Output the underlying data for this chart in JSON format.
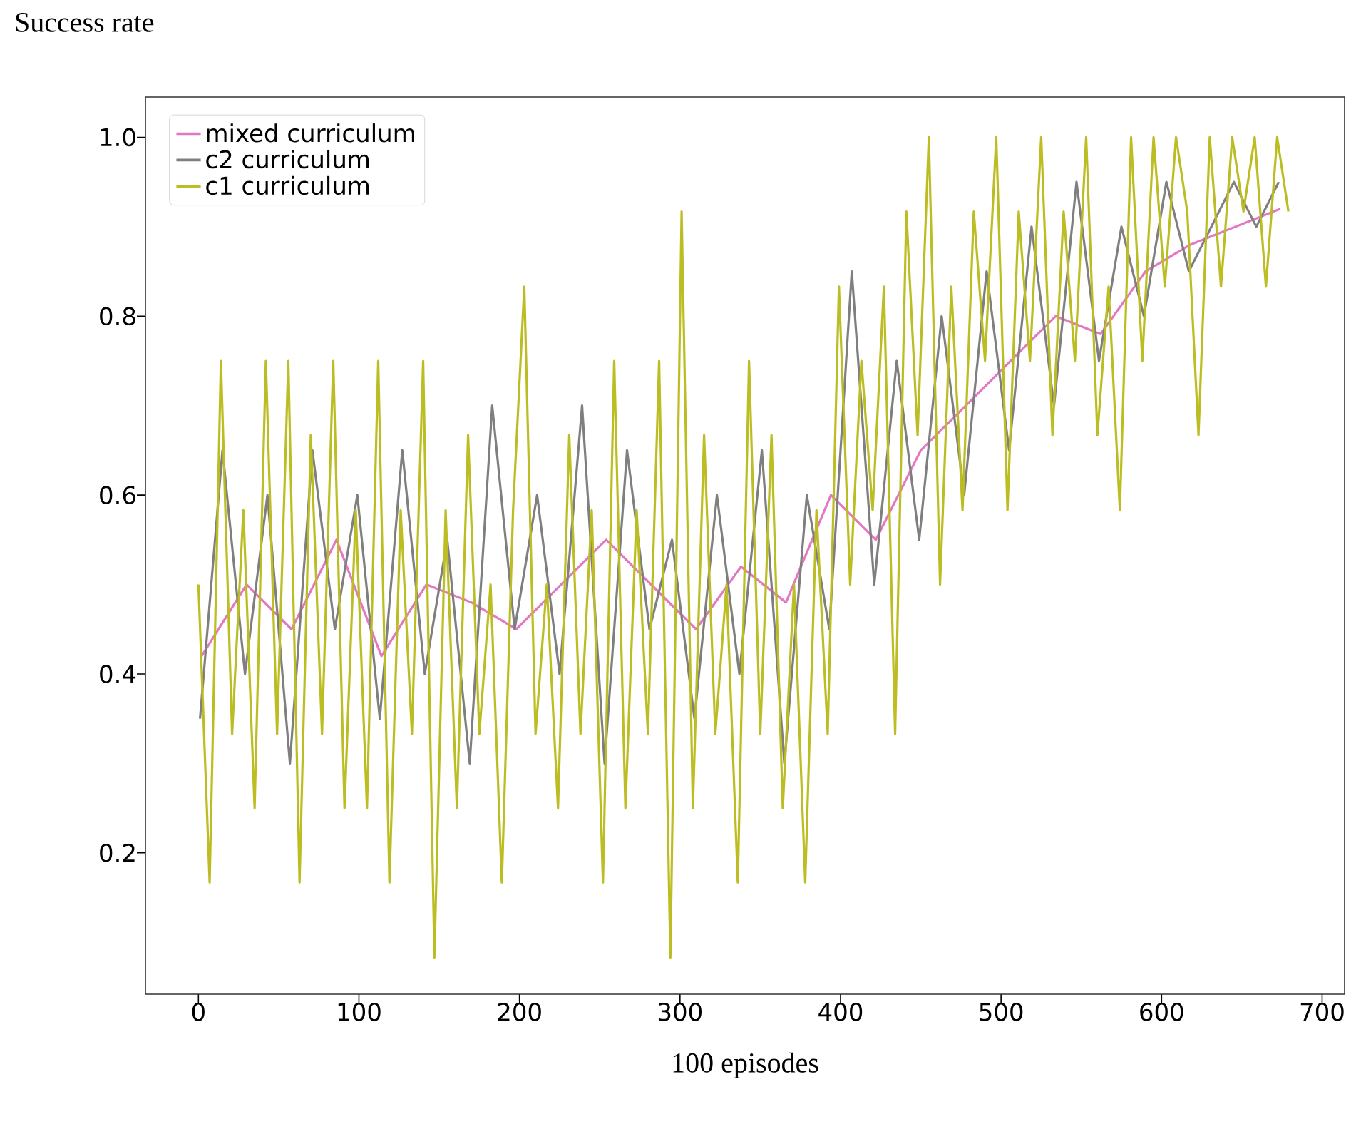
{
  "chart_data": {
    "type": "line",
    "ylabel": "Success rate",
    "xlabel": "100 episodes",
    "xlim": [
      -33,
      714
    ],
    "ylim": [
      0.042,
      1.045
    ],
    "xticks": [
      0,
      100,
      200,
      300,
      400,
      500,
      600,
      700
    ],
    "yticks": [
      0.2,
      0.4,
      0.6,
      0.8,
      {
        "value": 1.0,
        "label": "1.0"
      }
    ],
    "legend": "top left",
    "series": [
      {
        "name": "mixed curriculum",
        "color": "#e377c2",
        "x": [
          2,
          30,
          58,
          86,
          114,
          142,
          170,
          198,
          226,
          254,
          282,
          310,
          338,
          366,
          394,
          422,
          450,
          478,
          506,
          534,
          562,
          590,
          618,
          646,
          674
        ],
        "values": [
          0.42,
          0.5,
          0.45,
          0.55,
          0.42,
          0.5,
          0.48,
          0.45,
          0.5,
          0.55,
          0.5,
          0.45,
          0.52,
          0.48,
          0.6,
          0.55,
          0.65,
          0.7,
          0.75,
          0.8,
          0.78,
          0.85,
          0.88,
          0.9,
          0.92
        ]
      },
      {
        "name": "c2 curriculum",
        "color": "#7f7f7f",
        "x": [
          1,
          15,
          29,
          43,
          57,
          71,
          85,
          99,
          113,
          127,
          141,
          155,
          169,
          183,
          197,
          211,
          225,
          239,
          253,
          267,
          281,
          295,
          309,
          323,
          337,
          351,
          365,
          379,
          393,
          407,
          421,
          435,
          449,
          463,
          477,
          491,
          505,
          519,
          533,
          547,
          561,
          575,
          589,
          603,
          617,
          631,
          645,
          659,
          673
        ],
        "values": [
          0.35,
          0.65,
          0.4,
          0.6,
          0.3,
          0.65,
          0.45,
          0.6,
          0.35,
          0.65,
          0.4,
          0.55,
          0.3,
          0.7,
          0.45,
          0.6,
          0.4,
          0.7,
          0.3,
          0.65,
          0.45,
          0.55,
          0.35,
          0.6,
          0.4,
          0.65,
          0.3,
          0.6,
          0.45,
          0.85,
          0.5,
          0.75,
          0.55,
          0.8,
          0.6,
          0.85,
          0.65,
          0.9,
          0.7,
          0.95,
          0.75,
          0.9,
          0.8,
          0.95,
          0.85,
          0.9,
          0.95,
          0.9,
          0.95
        ]
      },
      {
        "name": "c1 curriculum",
        "color": "#bcbd22",
        "x": [
          0,
          7,
          14,
          21,
          28,
          35,
          42,
          49,
          56,
          63,
          70,
          77,
          84,
          91,
          98,
          105,
          112,
          119,
          126,
          133,
          140,
          147,
          154,
          161,
          168,
          175,
          182,
          189,
          196,
          203,
          210,
          217,
          224,
          231,
          238,
          245,
          252,
          259,
          266,
          273,
          280,
          287,
          294,
          301,
          308,
          315,
          322,
          329,
          336,
          343,
          350,
          357,
          364,
          371,
          378,
          385,
          392,
          399,
          406,
          413,
          420,
          427,
          434,
          441,
          448,
          455,
          462,
          469,
          476,
          483,
          490,
          497,
          504,
          511,
          518,
          525,
          532,
          539,
          546,
          553,
          560,
          567,
          574,
          581,
          588,
          595,
          602,
          609,
          616,
          623,
          630,
          637,
          644,
          651,
          658,
          665,
          672,
          679
        ],
        "values": [
          0.5,
          0.167,
          0.75,
          0.333,
          0.583,
          0.25,
          0.75,
          0.333,
          0.75,
          0.167,
          0.667,
          0.333,
          0.75,
          0.25,
          0.583,
          0.25,
          0.75,
          0.167,
          0.583,
          0.333,
          0.75,
          0.083,
          0.583,
          0.25,
          0.667,
          0.333,
          0.5,
          0.167,
          0.583,
          0.833,
          0.333,
          0.5,
          0.25,
          0.667,
          0.333,
          0.583,
          0.167,
          0.75,
          0.25,
          0.583,
          0.333,
          0.75,
          0.083,
          0.917,
          0.25,
          0.667,
          0.333,
          0.5,
          0.167,
          0.75,
          0.333,
          0.667,
          0.25,
          0.5,
          0.167,
          0.583,
          0.333,
          0.833,
          0.5,
          0.75,
          0.583,
          0.833,
          0.333,
          0.917,
          0.667,
          1.0,
          0.5,
          0.833,
          0.583,
          0.917,
          0.75,
          1.0,
          0.583,
          0.917,
          0.75,
          1.0,
          0.667,
          0.917,
          0.75,
          1.0,
          0.667,
          0.833,
          0.583,
          1.0,
          0.75,
          1.0,
          0.833,
          1.0,
          0.917,
          0.667,
          1.0,
          0.833,
          1.0,
          0.917,
          1.0,
          0.833,
          1.0,
          0.917
        ]
      }
    ]
  }
}
